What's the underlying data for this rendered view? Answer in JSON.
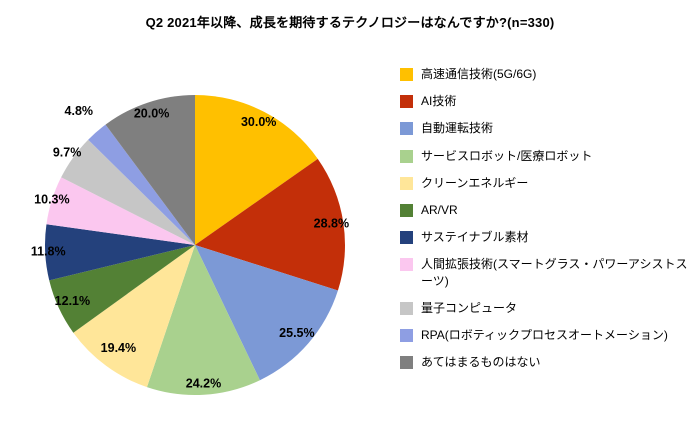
{
  "title": "Q2 2021年以降、成長を期待するテクノロジーはなんですか?(n=330)",
  "chart_data": {
    "type": "pie",
    "title": "Q2 2021年以降、成長を期待するテクノロジーはなんですか?(n=330)",
    "sample_size_text": "n=330",
    "legend_position": "right",
    "categories": [
      "高速通信技術(5G/6G)",
      "AI技術",
      "自動運転技術",
      "サービスロボット/医療ロボット",
      "クリーンエネルギー",
      "AR/VR",
      "サステイナブル素材",
      "人間拡張技術(スマートグラス・パワーアシストスーツ)",
      "量子コンピュータ",
      "RPA(ロボティックプロセスオートメーション)",
      "あてはまるものはない"
    ],
    "values": [
      30.0,
      28.8,
      25.5,
      24.2,
      19.4,
      12.1,
      11.8,
      10.3,
      9.7,
      4.8,
      20.0
    ],
    "labels": [
      "30.0%",
      "28.8%",
      "25.5%",
      "24.2%",
      "19.4%",
      "12.1%",
      "11.8%",
      "10.3%",
      "9.7%",
      "4.8%",
      "20.0%"
    ],
    "colors": [
      "#FFC000",
      "#C32F09",
      "#7C99D6",
      "#A9D18E",
      "#FFE699",
      "#538135",
      "#24417C",
      "#FBC7EF",
      "#C6C6C6",
      "#8E9EE3",
      "#7F7F7F"
    ]
  }
}
